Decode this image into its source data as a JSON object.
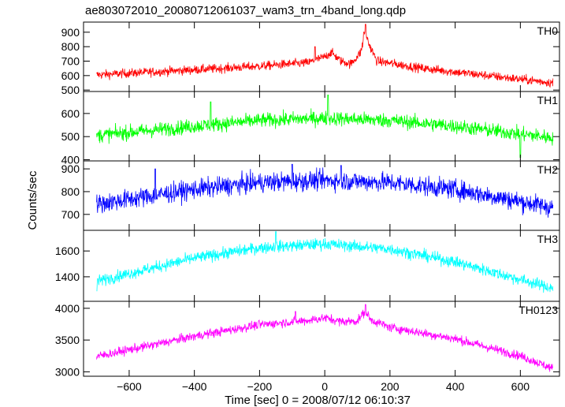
{
  "chart_data": {
    "type": "line",
    "title": "ae803072010_20080712061037_wam3_trn_4band_long.qdp",
    "xlabel": "Time [sec] 0 = 2008/07/12 06:10:37",
    "ylabel": "Counts/sec",
    "xlim": [
      -740,
      720
    ],
    "xticks": [
      -600,
      -400,
      -200,
      0,
      200,
      400,
      600
    ],
    "x_data_range": [
      -700,
      700
    ],
    "grid": false,
    "panels": [
      {
        "name": "TH0",
        "color": "#ff0000",
        "ylim": [
          490,
          970
        ],
        "yticks": [
          500,
          600,
          700,
          800,
          900
        ],
        "trend": [
          [
            -700,
            605
          ],
          [
            -400,
            640
          ],
          [
            -200,
            665
          ],
          [
            -50,
            690
          ],
          [
            0,
            730
          ],
          [
            20,
            760
          ],
          [
            50,
            700
          ],
          [
            80,
            680
          ],
          [
            110,
            760
          ],
          [
            125,
            900
          ],
          [
            135,
            820
          ],
          [
            160,
            700
          ],
          [
            300,
            650
          ],
          [
            500,
            600
          ],
          [
            700,
            550
          ]
        ],
        "noise": 22,
        "spikes": [
          [
            125,
            955
          ],
          [
            120,
            900
          ],
          [
            -30,
            800
          ]
        ]
      },
      {
        "name": "TH1",
        "color": "#00ff00",
        "ylim": [
          395,
          695
        ],
        "yticks": [
          400,
          500,
          600
        ],
        "trend": [
          [
            -700,
            505
          ],
          [
            -400,
            545
          ],
          [
            -200,
            570
          ],
          [
            0,
            580
          ],
          [
            200,
            570
          ],
          [
            400,
            545
          ],
          [
            700,
            495
          ]
        ],
        "noise": 22,
        "spikes": [
          [
            10,
            680
          ],
          [
            -350,
            650
          ],
          [
            600,
            410
          ]
        ]
      },
      {
        "name": "TH2",
        "color": "#0000ff",
        "ylim": [
          630,
          935
        ],
        "yticks": [
          700,
          800,
          900
        ],
        "trend": [
          [
            -700,
            745
          ],
          [
            -400,
            810
          ],
          [
            -200,
            840
          ],
          [
            0,
            850
          ],
          [
            200,
            840
          ],
          [
            400,
            810
          ],
          [
            700,
            730
          ]
        ],
        "noise": 30,
        "spikes": [
          [
            -100,
            920
          ],
          [
            50,
            915
          ],
          [
            -520,
            900
          ]
        ]
      },
      {
        "name": "TH3",
        "color": "#00ffff",
        "ylim": [
          1210,
          1760
        ],
        "yticks": [
          1400,
          1600
        ],
        "trend": [
          [
            -700,
            1365
          ],
          [
            -400,
            1545
          ],
          [
            -200,
            1625
          ],
          [
            0,
            1655
          ],
          [
            200,
            1615
          ],
          [
            400,
            1515
          ],
          [
            700,
            1310
          ]
        ],
        "noise": 32,
        "spikes": [
          [
            -150,
            1750
          ],
          [
            -700,
            1290
          ]
        ]
      },
      {
        "name": "TH0123",
        "color": "#ff00ff",
        "ylim": [
          2930,
          4110
        ],
        "yticks": [
          3000,
          3500,
          4000
        ],
        "trend": [
          [
            -700,
            3240
          ],
          [
            -400,
            3560
          ],
          [
            -200,
            3740
          ],
          [
            -50,
            3810
          ],
          [
            0,
            3850
          ],
          [
            50,
            3790
          ],
          [
            100,
            3800
          ],
          [
            125,
            3960
          ],
          [
            140,
            3820
          ],
          [
            200,
            3700
          ],
          [
            400,
            3520
          ],
          [
            600,
            3250
          ],
          [
            700,
            3050
          ]
        ],
        "noise": 50,
        "spikes": [
          [
            125,
            4060
          ],
          [
            -90,
            3950
          ]
        ]
      }
    ]
  }
}
